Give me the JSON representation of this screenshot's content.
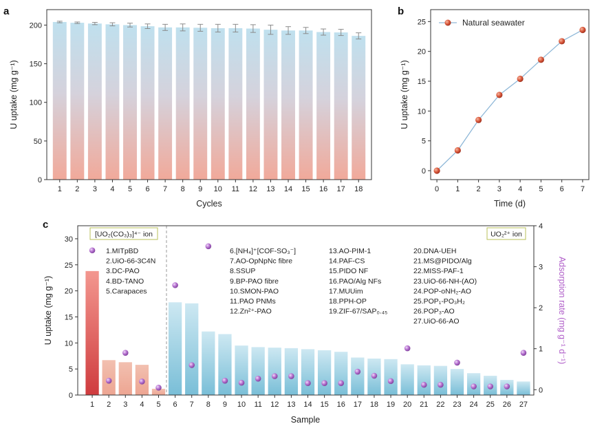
{
  "panels": {
    "a": {
      "label": "a",
      "chart_data": {
        "type": "bar",
        "xlabel": "Cycles",
        "ylabel": "U uptake (mg g⁻¹)",
        "ylim": [
          0,
          220
        ],
        "yticks": [
          0,
          50,
          100,
          150,
          200
        ],
        "categories": [
          "1",
          "2",
          "3",
          "4",
          "5",
          "6",
          "7",
          "8",
          "9",
          "10",
          "11",
          "12",
          "13",
          "14",
          "15",
          "16",
          "17",
          "18"
        ],
        "values": [
          204,
          203,
          202,
          201,
          200,
          198.5,
          197,
          197,
          196.5,
          196,
          196,
          195.5,
          194,
          193,
          193,
          191,
          190.5,
          186
        ],
        "errors": [
          1,
          1,
          1.5,
          2,
          2.5,
          3,
          4,
          4.5,
          4.5,
          5,
          5,
          5,
          6,
          5,
          4,
          4,
          4,
          4
        ]
      }
    },
    "b": {
      "label": "b",
      "chart_data": {
        "type": "line",
        "xlabel": "Time (d)",
        "ylabel": "U uptake (mg g⁻¹)",
        "xlim": [
          -0.3,
          7.3
        ],
        "ylim": [
          -1.5,
          27
        ],
        "xticks": [
          0,
          1,
          2,
          3,
          4,
          5,
          6,
          7
        ],
        "yticks": [
          0,
          5,
          10,
          15,
          20,
          25
        ],
        "series": [
          {
            "name": "Natural seawater",
            "x": [
              0,
              1,
              2,
              3,
              4,
              5,
              6,
              7
            ],
            "y": [
              0,
              3.4,
              8.5,
              12.7,
              15.4,
              18.6,
              21.7,
              23.6
            ]
          }
        ]
      }
    },
    "c": {
      "label": "c",
      "chart_data": {
        "type": "bar",
        "xlabel": "Sample",
        "ylabel": "U uptake (mg g⁻¹)",
        "ylabel_right": "Adsorption rate (mg g⁻¹ d⁻¹)",
        "ylim": [
          0,
          32.5
        ],
        "ylim_right": [
          -0.13,
          4.0
        ],
        "yticks": [
          0,
          5,
          10,
          15,
          20,
          25,
          30
        ],
        "yticks_right": [
          0,
          1,
          2,
          3,
          4
        ],
        "categories": [
          "1",
          "2",
          "3",
          "4",
          "5",
          "6",
          "7",
          "8",
          "9",
          "10",
          "11",
          "12",
          "13",
          "14",
          "15",
          "16",
          "17",
          "18",
          "19",
          "20",
          "21",
          "22",
          "23",
          "24",
          "25",
          "26",
          "27"
        ],
        "uptake": [
          23.8,
          6.7,
          6.3,
          5.8,
          1.2,
          17.8,
          17.6,
          12.2,
          11.7,
          9.5,
          9.2,
          9.1,
          9.0,
          8.8,
          8.6,
          8.3,
          7.2,
          7.0,
          6.9,
          5.9,
          5.7,
          5.6,
          5.0,
          4.2,
          3.7,
          2.9,
          2.6
        ],
        "rate": [
          3.4,
          0.22,
          0.9,
          0.2,
          0.05,
          2.55,
          0.6,
          3.5,
          0.22,
          0.17,
          0.27,
          0.33,
          0.33,
          0.16,
          0.16,
          0.16,
          0.44,
          0.34,
          0.21,
          1.01,
          0.12,
          0.12,
          0.66,
          0.08,
          0.08,
          0.08,
          0.9
        ],
        "group_left_label": "[UO₂(CO₃)₃]⁴⁻ ion",
        "group_right_label": "UO₂²⁺ ion",
        "legend_columns": [
          [
            "1.MITpBD",
            "2.UiO-66-3C4N",
            "3.DC-PAO",
            "4.BD-TANO",
            "5.Carapaces"
          ],
          [
            "6.[NH₄]⁺[COF-SO₃⁻]",
            "7.AO-OpNpNc fibre",
            "8.SSUP",
            "9.BP-PAO fibre",
            "10.SMON-PAO",
            "11.PAO PNMs",
            "12.Zn²⁺-PAO"
          ],
          [
            "13.AO-PIM-1",
            "14.PAF-CS",
            "15.PIDO NF",
            "16.PAO/Alg NFs",
            "17.MUUim",
            "18.PPH-OP",
            "19.ZIF-67/SAP₀.₄₅"
          ],
          [
            "20.DNA-UEH",
            "21.MS@PIDO/Alg",
            "22.MISS-PAF-1",
            "23.UiO-66-NH-(AO)",
            "24.POP-oNH₂-AO",
            "25.POP₁-PO₃H₂",
            "26.POP₃-AO",
            "27.UiO-66-AO"
          ]
        ]
      }
    }
  },
  "colors": {
    "a_bar_top": "#bfe0ee",
    "a_bar_bottom": "#f1a99a",
    "b_line": "#8fb8d8",
    "b_marker": "#d9573a",
    "c_red_top": "#f3978f",
    "c_red_bottom": "#cf3b3e",
    "c_salmon": "#f0b4a2",
    "c_blue_top": "#c9e6f1",
    "c_blue_bottom": "#7cc0d8",
    "c_dot": "#b774d1",
    "c_right_axis": "#b05fc9"
  }
}
